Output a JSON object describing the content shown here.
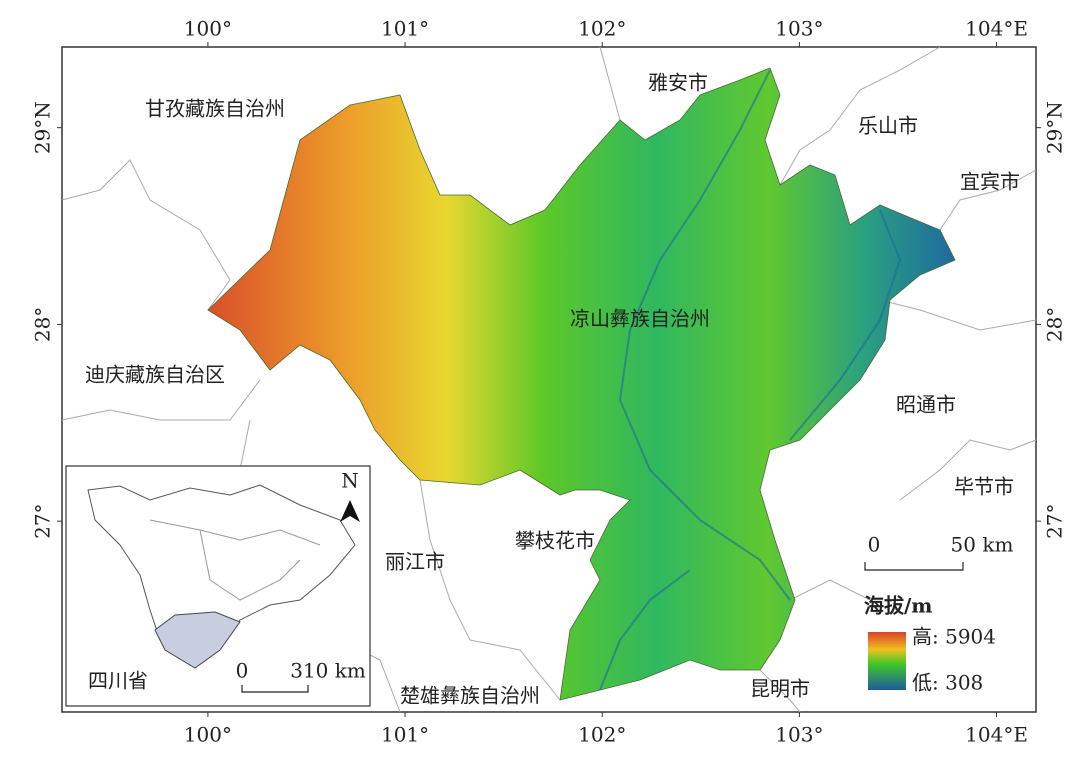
{
  "map": {
    "lonlim": [
      99.26,
      104.2
    ],
    "latlim": [
      26.03,
      29.41
    ],
    "lon_ticks": [
      {
        "value": 100,
        "label": "100°"
      },
      {
        "value": 101,
        "label": "101°"
      },
      {
        "value": 102,
        "label": "102°"
      },
      {
        "value": 103,
        "label": "103°"
      },
      {
        "value": 104,
        "label": "104°E"
      }
    ],
    "lat_ticks": [
      {
        "value": 29,
        "label": "29°N"
      },
      {
        "value": 28,
        "label": "28°"
      },
      {
        "value": 27,
        "label": "27°"
      }
    ],
    "places": [
      "甘孜藏族自治州",
      "雅安市",
      "乐山市",
      "宜宾市",
      "凉山彝族自治州",
      "迪庆藏族自治区",
      "昭通市",
      "毕节市",
      "攀枝花市",
      "丽江市",
      "楚雄彝族自治州",
      "昆明市"
    ],
    "legend": {
      "title": "海拔/m",
      "high": "高: 5904",
      "low": "低: 308"
    },
    "scale_bar": {
      "start": "0",
      "end": "50 km"
    },
    "inset": {
      "label": "四川省",
      "north": "N",
      "scale_start": "0",
      "scale_end": "310 km"
    }
  }
}
